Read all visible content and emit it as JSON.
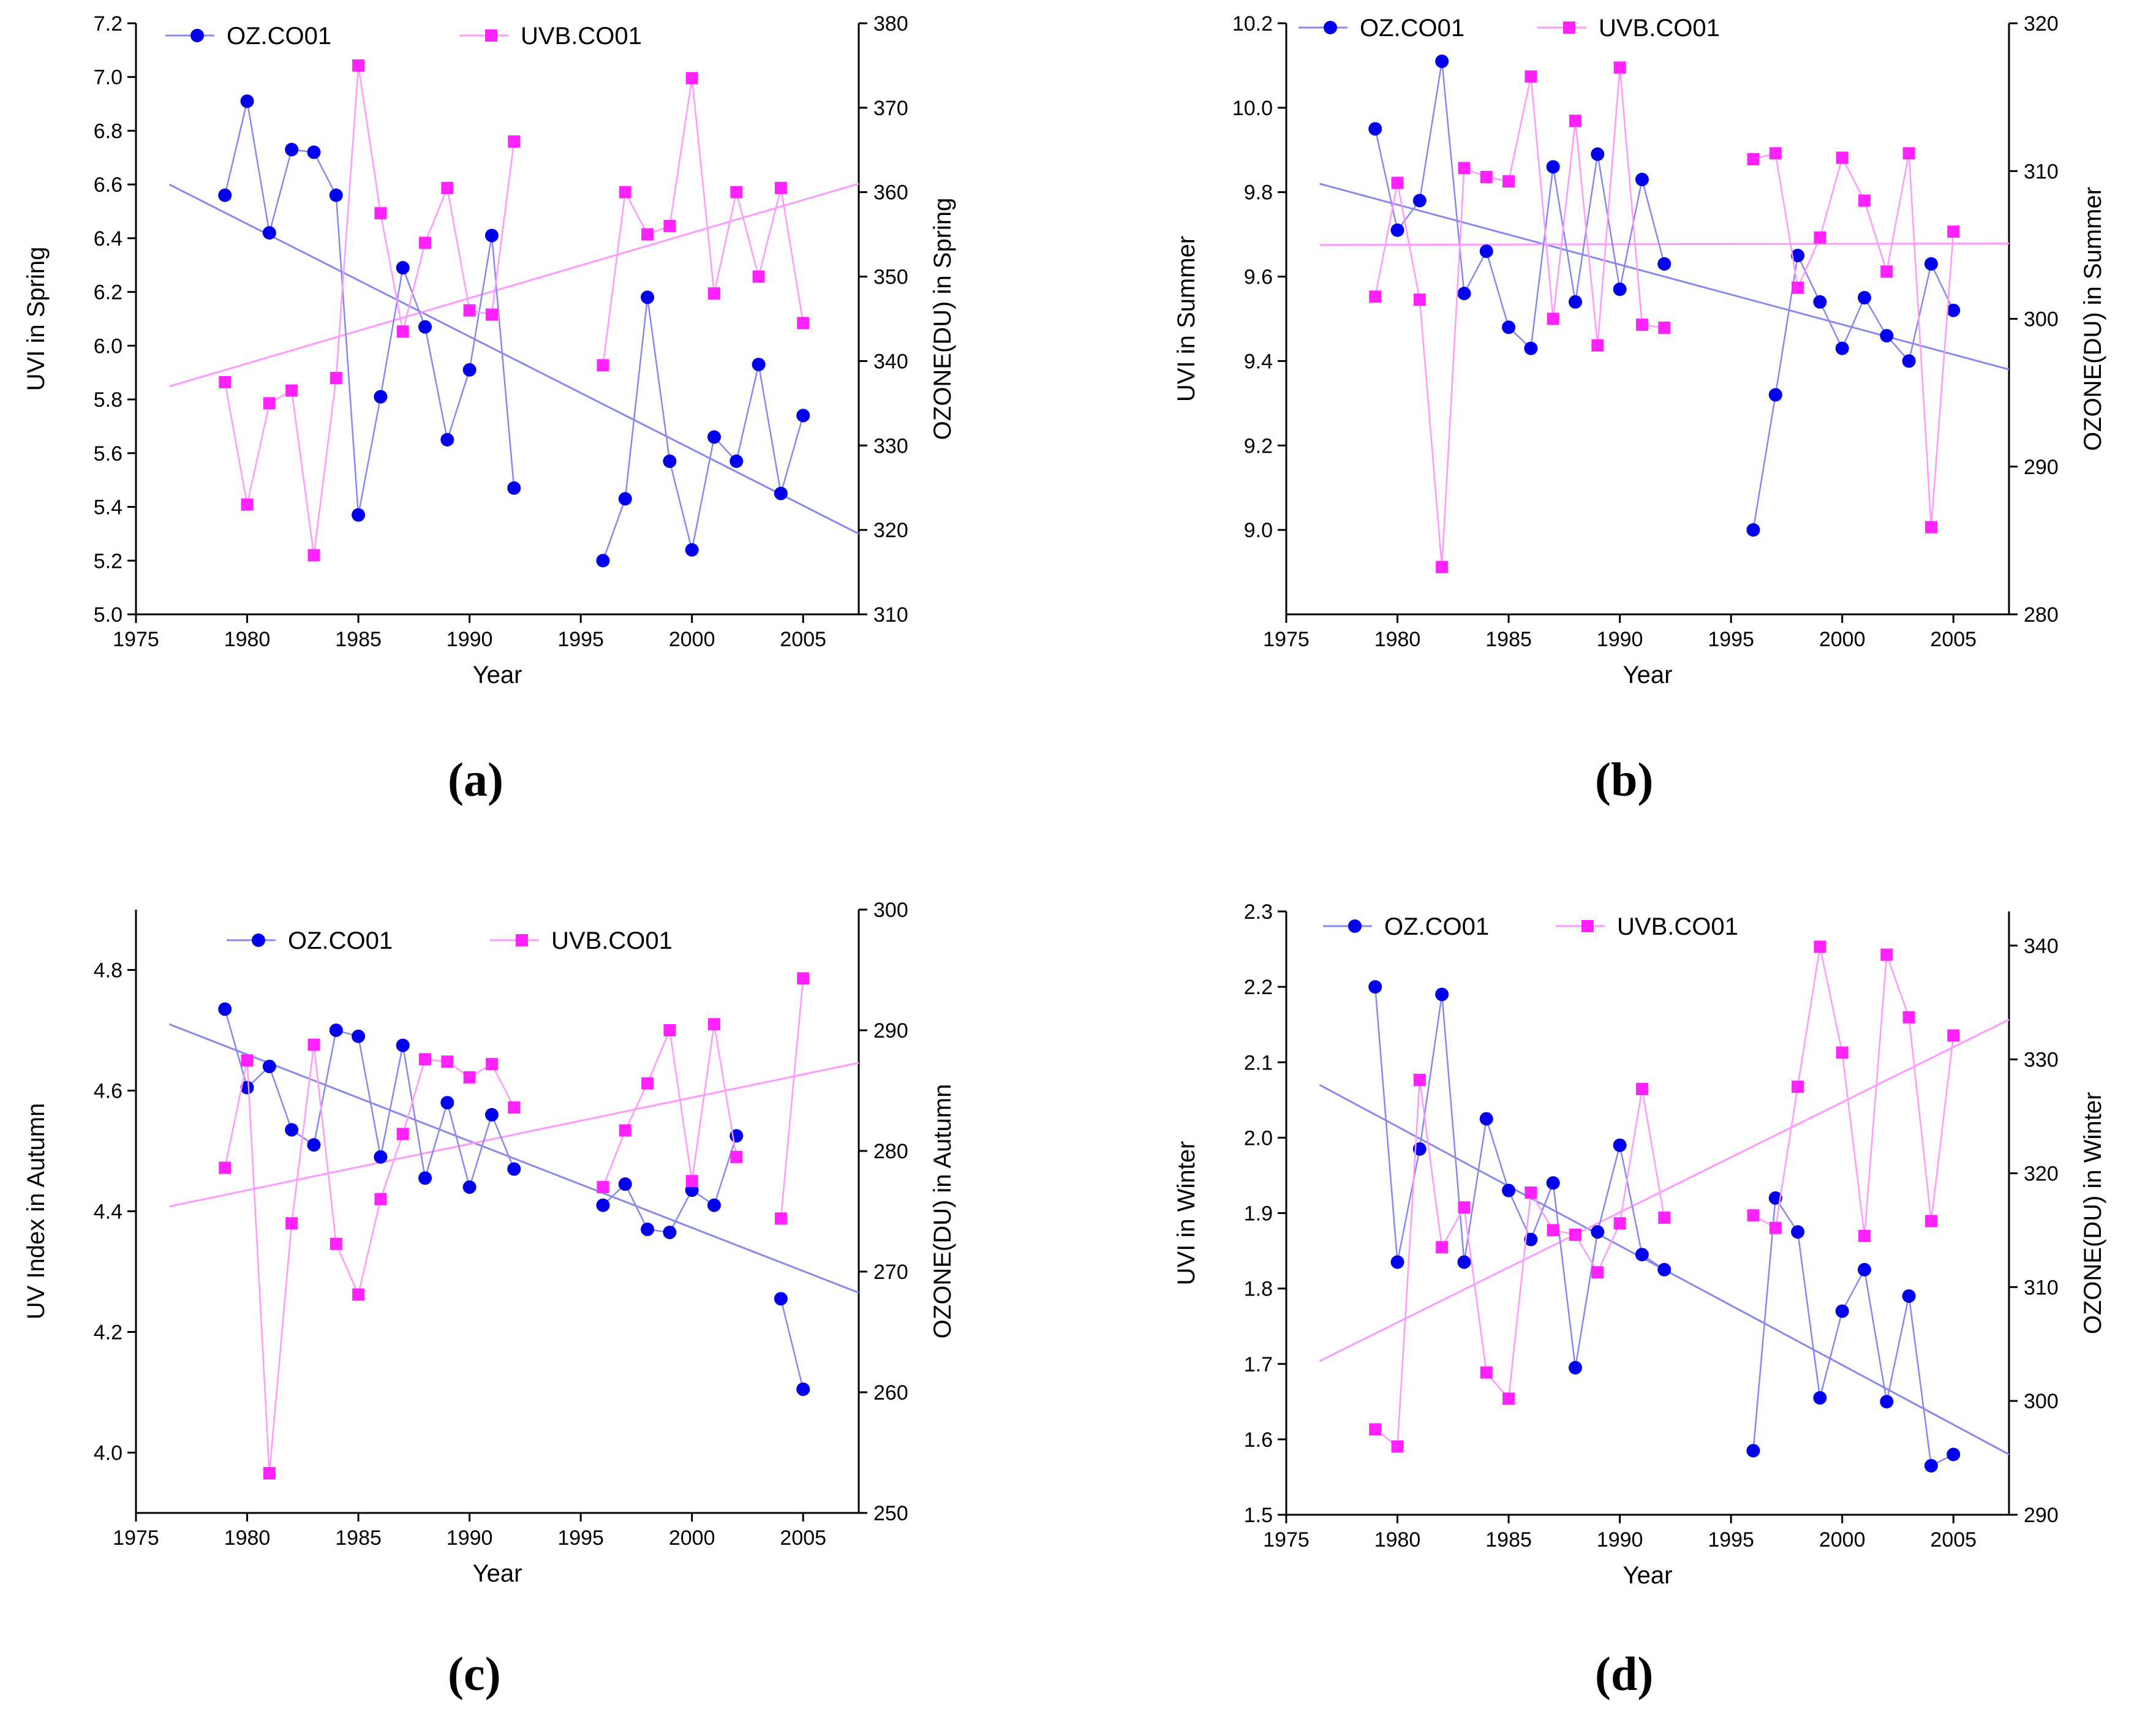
{
  "figure": {
    "panel_labels": [
      "(a)",
      "(b)",
      "(c)",
      "(d)"
    ],
    "colors": {
      "oz": "#0000ee",
      "uvb": "#ff22ff",
      "oz_line": "#8888ee",
      "uvb_line": "#ff99ff",
      "axis": "#000000"
    }
  },
  "chart_data": [
    {
      "type": "line",
      "title": "",
      "panel": "(a)",
      "xlabel": "Year",
      "ylabel": "UVI  in Spring",
      "ylabel_right": "OZONE(DU)  in Spring",
      "xlim": [
        1975,
        2007.5
      ],
      "ylim": [
        5.0,
        7.2
      ],
      "ylim_right": [
        310,
        380
      ],
      "xticks": [
        1975,
        1980,
        1985,
        1990,
        1995,
        2000,
        2005
      ],
      "yticks": [
        5.0,
        5.2,
        5.4,
        5.6,
        5.8,
        6.0,
        6.2,
        6.4,
        6.6,
        6.8,
        7.0,
        7.2
      ],
      "yticks_right": [
        310,
        320,
        330,
        340,
        350,
        360,
        370,
        380
      ],
      "legend": [
        "OZ.CO01",
        "UVB.CO01"
      ],
      "series": [
        {
          "name": "OZ.CO01",
          "axis": "left",
          "marker": "circle",
          "x": [
            1979,
            1980,
            1981,
            1982,
            1983,
            1984,
            1985,
            1986,
            1987,
            1988,
            1989,
            1990,
            1991,
            1992,
            1996,
            1997,
            1998,
            1999,
            2000,
            2001,
            2002,
            2003,
            2004,
            2005
          ],
          "y": [
            6.56,
            6.91,
            6.42,
            6.73,
            6.72,
            6.56,
            5.37,
            5.81,
            6.29,
            6.07,
            5.65,
            5.91,
            6.41,
            5.47,
            5.2,
            5.43,
            6.18,
            5.57,
            5.24,
            5.66,
            5.57,
            5.93,
            5.45,
            5.74
          ]
        },
        {
          "name": "UVB.CO01",
          "axis": "right",
          "marker": "square",
          "x": [
            1979,
            1980,
            1981,
            1982,
            1983,
            1984,
            1985,
            1986,
            1987,
            1988,
            1989,
            1990,
            1991,
            1992,
            1996,
            1997,
            1998,
            1999,
            2000,
            2001,
            2002,
            2003,
            2004,
            2005
          ],
          "y": [
            337.5,
            323,
            335,
            336.5,
            317,
            338,
            375,
            357.5,
            343.5,
            354,
            360.5,
            346,
            345.5,
            366,
            339.5,
            360,
            355,
            356,
            373.5,
            348,
            360,
            350,
            360.5,
            344.5
          ]
        }
      ],
      "trendlines": [
        {
          "name": "OZ.CO01 trend",
          "axis": "left",
          "x": [
            1976.5,
            2007.5
          ],
          "y": [
            6.6,
            5.3
          ]
        },
        {
          "name": "UVB.CO01 trend",
          "axis": "right",
          "x": [
            1976.5,
            2007.5
          ],
          "y": [
            337,
            361
          ]
        }
      ]
    },
    {
      "type": "line",
      "title": "",
      "panel": "(b)",
      "xlabel": "Year",
      "ylabel": "UVI in Summer",
      "ylabel_right": "OZONE(DU) in Summer",
      "xlim": [
        1975,
        2007.5
      ],
      "ylim": [
        8.8,
        10.2
      ],
      "ylim_right": [
        280,
        320
      ],
      "xticks": [
        1975,
        1980,
        1985,
        1990,
        1995,
        2000,
        2005
      ],
      "yticks": [
        9.0,
        9.2,
        9.4,
        9.6,
        9.8,
        10.0,
        10.2
      ],
      "yticks_right": [
        280,
        290,
        300,
        310,
        320
      ],
      "legend": [
        "OZ.CO01",
        "UVB.CO01"
      ],
      "series": [
        {
          "name": "OZ.CO01",
          "axis": "left",
          "marker": "circle",
          "x": [
            1979,
            1980,
            1981,
            1982,
            1983,
            1984,
            1985,
            1986,
            1987,
            1988,
            1989,
            1990,
            1991,
            1992,
            1996,
            1997,
            1998,
            1999,
            2000,
            2001,
            2002,
            2003,
            2004,
            2005
          ],
          "y": [
            9.95,
            9.71,
            9.78,
            10.11,
            9.56,
            9.66,
            9.48,
            9.43,
            9.86,
            9.54,
            9.89,
            9.57,
            9.83,
            9.63,
            9.0,
            9.32,
            9.65,
            9.54,
            9.43,
            9.55,
            9.46,
            9.4,
            9.63,
            9.52
          ]
        },
        {
          "name": "UVB.CO01",
          "axis": "right",
          "marker": "square",
          "x": [
            1979,
            1980,
            1981,
            1982,
            1983,
            1984,
            1985,
            1986,
            1987,
            1988,
            1989,
            1990,
            1991,
            1992,
            1996,
            1997,
            1998,
            1999,
            2000,
            2001,
            2002,
            2003,
            2004,
            2005
          ],
          "y": [
            301.5,
            309.2,
            301.3,
            283.2,
            310.2,
            309.6,
            309.3,
            316.4,
            300,
            313.4,
            298.2,
            317,
            299.6,
            299.4,
            310.8,
            311.2,
            302.1,
            305.5,
            310.9,
            308,
            303.2,
            311.2,
            285.9,
            305.9
          ]
        }
      ],
      "trendlines": [
        {
          "name": "OZ.CO01 trend",
          "axis": "left",
          "x": [
            1976.5,
            2007.5
          ],
          "y": [
            9.82,
            9.38
          ]
        },
        {
          "name": "UVB.CO01 trend",
          "axis": "right",
          "x": [
            1976.5,
            2007.5
          ],
          "y": [
            305,
            305.1
          ]
        }
      ]
    },
    {
      "type": "line",
      "title": "",
      "panel": "(c)",
      "xlabel": "Year",
      "ylabel": "UV Index in Autumn",
      "ylabel_right": "OZONE(DU) in Autumn",
      "xlim": [
        1975,
        2007.5
      ],
      "ylim": [
        3.9,
        4.9
      ],
      "ylim_right": [
        250,
        300
      ],
      "xticks": [
        1975,
        1980,
        1985,
        1990,
        1995,
        2000,
        2005
      ],
      "yticks": [
        4.0,
        4.2,
        4.4,
        4.6,
        4.8
      ],
      "yticks_right": [
        250,
        260,
        270,
        280,
        290,
        300
      ],
      "legend": [
        "OZ.CO01",
        "UVB.CO01"
      ],
      "series": [
        {
          "name": "OZ.CO01",
          "axis": "left",
          "marker": "circle",
          "x": [
            1979,
            1980,
            1981,
            1982,
            1983,
            1984,
            1985,
            1986,
            1987,
            1988,
            1989,
            1990,
            1991,
            1992,
            1996,
            1997,
            1998,
            1999,
            2000,
            2001,
            2002,
            2004,
            2005
          ],
          "y": [
            4.735,
            4.605,
            4.64,
            4.535,
            4.51,
            4.7,
            4.69,
            4.49,
            4.675,
            4.455,
            4.58,
            4.44,
            4.56,
            4.47,
            4.41,
            4.445,
            4.37,
            4.365,
            4.435,
            4.41,
            4.525,
            4.255,
            4.105
          ]
        },
        {
          "name": "UVB.CO01",
          "axis": "right",
          "marker": "square",
          "x": [
            1979,
            1980,
            1981,
            1982,
            1983,
            1984,
            1985,
            1986,
            1987,
            1988,
            1989,
            1990,
            1991,
            1992,
            1996,
            1997,
            1998,
            1999,
            2000,
            2001,
            2002,
            2004,
            2005
          ],
          "y": [
            278.6,
            287.5,
            253.3,
            274,
            288.8,
            272.3,
            268.1,
            276,
            281.4,
            287.6,
            287.4,
            286.1,
            287.2,
            283.6,
            277,
            281.7,
            285.6,
            290,
            277.5,
            290.5,
            279.5,
            274.4,
            294.3
          ]
        }
      ],
      "trendlines": [
        {
          "name": "OZ.CO01 trend",
          "axis": "left",
          "x": [
            1976.5,
            2007.5
          ],
          "y": [
            4.71,
            4.265
          ]
        },
        {
          "name": "UVB.CO01 trend",
          "axis": "right",
          "x": [
            1976.5,
            2007.5
          ],
          "y": [
            275.4,
            287.3
          ]
        }
      ]
    },
    {
      "type": "line",
      "title": "",
      "panel": "(d)",
      "xlabel": "Year",
      "ylabel": "UVI in Winter",
      "ylabel_right": "OZONE(DU)  in Winter",
      "xlim": [
        1975,
        2007.5
      ],
      "ylim": [
        1.5,
        2.3
      ],
      "ylim_right": [
        290,
        343
      ],
      "xticks": [
        1975,
        1980,
        1985,
        1990,
        1995,
        2000,
        2005
      ],
      "yticks": [
        1.5,
        1.6,
        1.7,
        1.8,
        1.9,
        2.0,
        2.1,
        2.2,
        2.3
      ],
      "yticks_right": [
        290,
        300,
        310,
        320,
        330,
        340
      ],
      "legend": [
        "OZ.CO01",
        "UVB.CO01"
      ],
      "series": [
        {
          "name": "OZ.CO01",
          "axis": "left",
          "marker": "circle",
          "x": [
            1979,
            1980,
            1981,
            1982,
            1983,
            1984,
            1985,
            1986,
            1987,
            1988,
            1989,
            1990,
            1991,
            1992,
            1996,
            1997,
            1998,
            1999,
            2000,
            2001,
            2002,
            2003,
            2004,
            2005
          ],
          "y": [
            2.2,
            1.835,
            1.985,
            2.19,
            1.835,
            2.025,
            1.93,
            1.865,
            1.94,
            1.695,
            1.875,
            1.99,
            1.845,
            1.825,
            1.585,
            1.92,
            1.875,
            1.655,
            1.77,
            1.825,
            1.65,
            1.79,
            1.565,
            1.58
          ]
        },
        {
          "name": "UVB.CO01",
          "axis": "right",
          "marker": "square",
          "x": [
            1979,
            1980,
            1981,
            1982,
            1983,
            1984,
            1985,
            1986,
            1987,
            1988,
            1989,
            1990,
            1991,
            1992,
            1996,
            1997,
            1998,
            1999,
            2000,
            2001,
            2002,
            2003,
            2004,
            2005
          ],
          "y": [
            297.5,
            296,
            328.2,
            313.5,
            317,
            302.5,
            300.2,
            318.3,
            315,
            314.6,
            311.3,
            315.6,
            327.4,
            316.1,
            316.3,
            315.2,
            327.6,
            339.9,
            330.6,
            314.5,
            339.2,
            333.7,
            315.8,
            332.1
          ]
        }
      ],
      "trendlines": [
        {
          "name": "OZ.CO01 trend",
          "axis": "left",
          "x": [
            1976.5,
            2007.5
          ],
          "y": [
            2.07,
            1.58
          ]
        },
        {
          "name": "UVB.CO01 trend",
          "axis": "right",
          "x": [
            1976.5,
            2007.5
          ],
          "y": [
            303.5,
            333.5
          ]
        }
      ]
    }
  ]
}
